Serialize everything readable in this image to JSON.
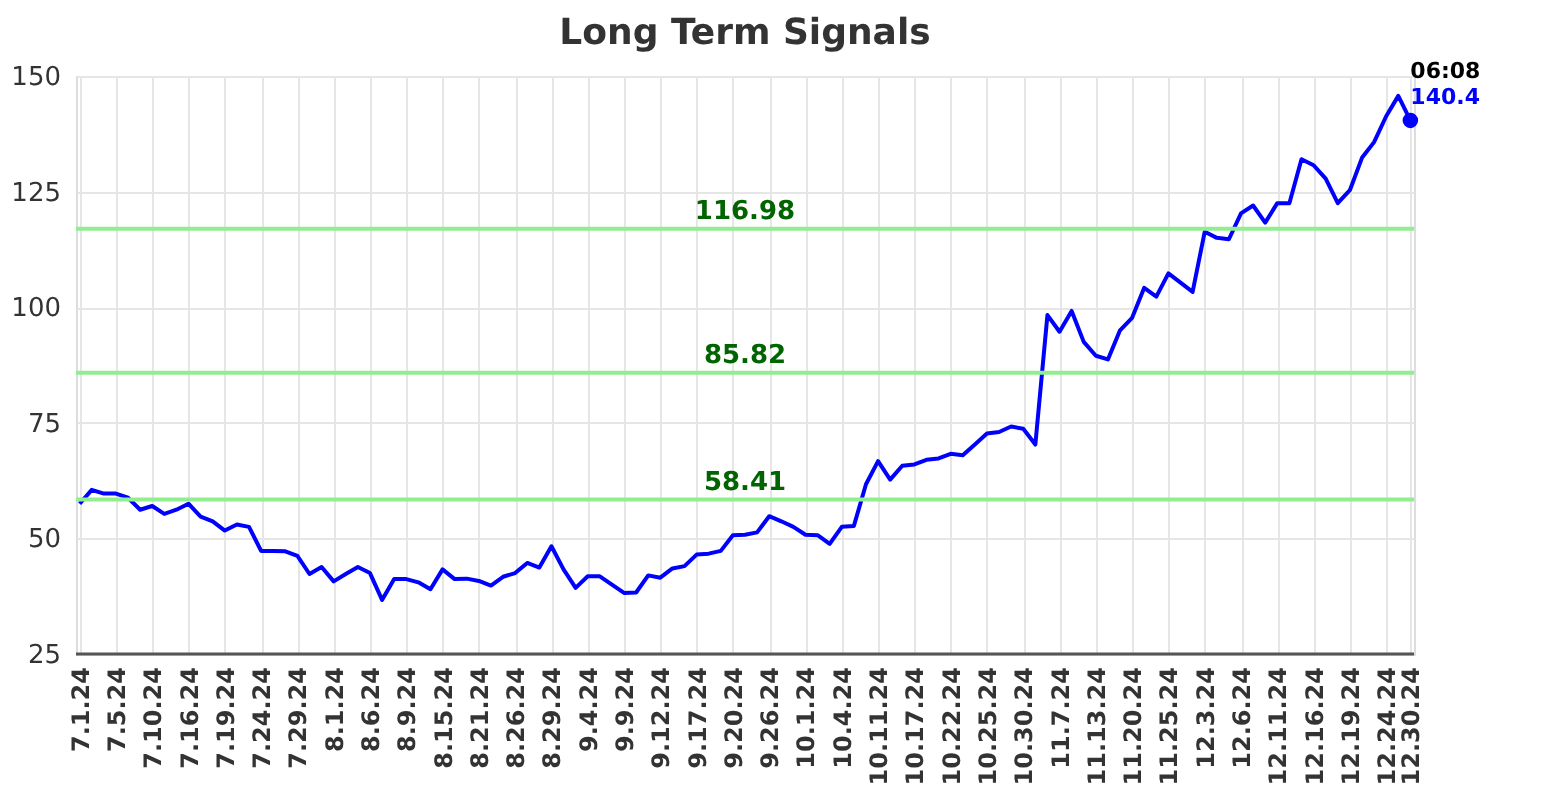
{
  "chart_data": {
    "type": "line",
    "title": "Long Term Signals",
    "categories": [
      "7.1.24",
      null,
      null,
      "7.5.24",
      null,
      null,
      "7.10.24",
      null,
      null,
      "7.16.24",
      null,
      null,
      "7.19.24",
      null,
      null,
      "7.24.24",
      null,
      null,
      "7.29.24",
      null,
      null,
      "8.1.24",
      null,
      null,
      "8.6.24",
      null,
      null,
      "8.9.24",
      null,
      null,
      "8.15.24",
      null,
      null,
      "8.21.24",
      null,
      null,
      "8.26.24",
      null,
      null,
      "8.29.24",
      null,
      null,
      "9.4.24",
      null,
      null,
      "9.9.24",
      null,
      null,
      "9.12.24",
      null,
      null,
      "9.17.24",
      null,
      null,
      "9.20.24",
      null,
      null,
      "9.26.24",
      null,
      null,
      "10.1.24",
      null,
      null,
      "10.4.24",
      null,
      null,
      "10.11.24",
      null,
      null,
      "10.17.24",
      null,
      null,
      "10.22.24",
      null,
      null,
      "10.25.24",
      null,
      null,
      "10.30.24",
      null,
      null,
      "11.7.24",
      null,
      null,
      "11.13.24",
      null,
      null,
      "11.20.24",
      null,
      null,
      "11.25.24",
      null,
      null,
      "12.3.24",
      null,
      null,
      "12.6.24",
      null,
      null,
      "12.11.24",
      null,
      null,
      "12.16.24",
      null,
      null,
      "12.19.24",
      null,
      null,
      "12.24.24",
      null,
      "12.30.24"
    ],
    "series": [
      {
        "color": "#0000ff",
        "values": [
          57.5,
          60.5,
          59.7,
          59.7,
          58.8,
          56.2,
          57,
          55.3,
          56.2,
          57.5,
          54.7,
          53.7,
          51.7,
          53,
          52.5,
          47.3,
          47.3,
          47.2,
          46.2,
          42.3,
          43.8,
          40.7,
          42.3,
          43.8,
          42.5,
          36.7,
          41.2,
          41.2,
          40.5,
          39,
          43.3,
          41.2,
          41.3,
          40.8,
          39.8,
          41.7,
          42.5,
          44.7,
          43.7,
          48.3,
          43.3,
          39.3,
          41.8,
          41.8,
          40,
          38.2,
          38.3,
          42,
          41.5,
          43.5,
          44,
          46.5,
          46.7,
          47.3,
          50.7,
          50.8,
          51.3,
          54.8,
          53.7,
          52.5,
          50.8,
          50.7,
          48.8,
          52.5,
          52.7,
          61.7,
          66.7,
          62.7,
          65.7,
          66,
          67,
          67.3,
          68.3,
          68,
          70.3,
          72.7,
          73,
          74.2,
          73.7,
          70.3,
          98.3,
          94.7,
          99.2,
          92.5,
          89.5,
          88.7,
          95,
          97.7,
          104.2,
          102.3,
          107.3,
          105.3,
          103.3,
          116.3,
          115,
          114.7,
          120.3,
          122,
          118.3,
          122.5,
          122.5,
          132,
          130.7,
          127.8,
          122.5,
          125.3,
          132.3,
          135.7,
          141.3,
          145.7,
          140.4
        ]
      },
      {
        "type": "scatter",
        "color": "#0000ff",
        "x": [
          "12.30.24"
        ],
        "values": [
          140.4
        ]
      }
    ],
    "ylim": [
      25,
      150
    ],
    "yticks": [
      25,
      50,
      75,
      100,
      125,
      150
    ],
    "grid": true,
    "ref_lines": [
      {
        "axis": "y",
        "value": 116.98,
        "label": "116.98",
        "color": "#90ee90"
      },
      {
        "axis": "y",
        "value": 85.82,
        "label": "85.82",
        "color": "#90ee90"
      },
      {
        "axis": "y",
        "value": 58.41,
        "label": "58.41",
        "color": "#90ee90"
      }
    ],
    "annotations": [
      {
        "text": "06:08",
        "x": "12.30.24",
        "y": 140.4
      },
      {
        "text": "140.4",
        "x": "12.30.24",
        "y": 140.4
      }
    ]
  }
}
